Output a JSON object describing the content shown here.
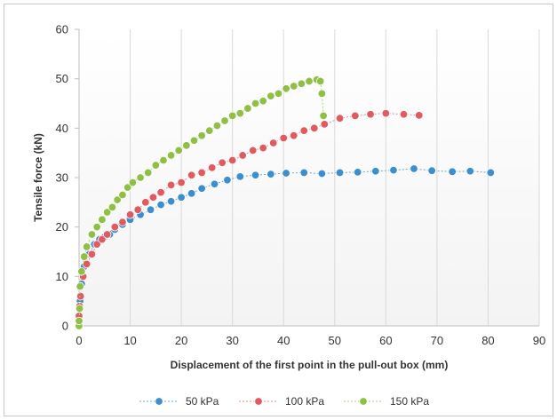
{
  "chart_data": {
    "type": "line",
    "title": "",
    "xlabel": "Displacement of the first point in the pull-out box (mm)",
    "ylabel": "Tensile force (kN)",
    "xlim": [
      0,
      90
    ],
    "ylim": [
      0,
      60
    ],
    "xticks": [
      0,
      10,
      20,
      30,
      40,
      50,
      60,
      70,
      80,
      90
    ],
    "yticks": [
      0,
      10,
      20,
      30,
      40,
      50,
      60
    ],
    "grid": "vertical",
    "legend_position": "bottom",
    "series": [
      {
        "name": "50 kPa",
        "color": "#3b8fd0",
        "line_color": "#6aa8d8",
        "x": [
          0,
          0,
          0.2,
          0.5,
          1,
          2,
          3,
          4,
          5,
          6,
          7,
          8.5,
          10,
          12,
          14,
          16,
          18,
          20,
          22,
          24,
          26.5,
          29,
          31.5,
          34.5,
          37.5,
          40.5,
          44,
          47.5,
          51,
          54.5,
          58,
          61.5,
          65.5,
          69,
          73,
          76.5,
          80.5
        ],
        "y": [
          0,
          2,
          5,
          8.5,
          12,
          14.5,
          16.5,
          17.5,
          18,
          18.5,
          19.5,
          20.5,
          21.5,
          22.5,
          23.5,
          24.5,
          25.2,
          26,
          26.8,
          27.8,
          28.7,
          29.5,
          30.2,
          30.5,
          30.7,
          30.9,
          31,
          30.8,
          31,
          31.1,
          31.3,
          31.5,
          31.8,
          31.4,
          31.2,
          31.3,
          31
        ]
      },
      {
        "name": "100 kPa",
        "color": "#e05a5f",
        "line_color": "#e88a8d",
        "x": [
          0,
          0,
          0.1,
          0.3,
          0.8,
          1.5,
          2.5,
          3.5,
          4.5,
          5.5,
          7,
          8.5,
          10,
          11.5,
          13,
          14.5,
          16,
          18,
          20,
          22,
          24,
          26,
          28,
          30,
          32,
          34,
          36,
          38,
          40,
          42,
          44,
          46,
          48,
          51,
          54,
          57,
          60,
          63.5,
          66.5
        ],
        "y": [
          0,
          2,
          4,
          6,
          10,
          12.5,
          14.5,
          16.5,
          17.5,
          18.5,
          20,
          21,
          22.5,
          23.5,
          25,
          26,
          27,
          28.5,
          29,
          30.5,
          31,
          32,
          33,
          33.5,
          34.5,
          35.5,
          36,
          37,
          38,
          38.5,
          39.5,
          40,
          40.8,
          42,
          42.5,
          42.8,
          43,
          42.8,
          42.6
        ]
      },
      {
        "name": "150 kPa",
        "color": "#8fbf45",
        "line_color": "#a9cf6c",
        "x": [
          0,
          0,
          0.1,
          0.2,
          0.5,
          1,
          1.5,
          2.5,
          3.5,
          4.5,
          5.5,
          6.5,
          7.5,
          8.5,
          9.5,
          10.5,
          12,
          13.5,
          15,
          16.5,
          18,
          19.5,
          21,
          22.5,
          24,
          25.5,
          27,
          28.5,
          30,
          31.5,
          33,
          34.5,
          36,
          37.5,
          39,
          40.5,
          42,
          43.5,
          45,
          46.5,
          47.2,
          47.5,
          47.8
        ],
        "y": [
          0,
          1,
          3.5,
          8,
          11,
          14,
          16,
          18.5,
          20,
          21.5,
          23,
          24,
          25.5,
          26.5,
          28,
          29,
          30,
          31,
          32.5,
          33.5,
          34.5,
          35.5,
          36.5,
          37.5,
          38.5,
          39.5,
          40.5,
          41.5,
          42.5,
          43,
          44,
          45,
          45.5,
          46.5,
          47,
          48,
          48.5,
          49,
          49.5,
          49.8,
          49.5,
          47,
          42.5
        ]
      }
    ]
  }
}
